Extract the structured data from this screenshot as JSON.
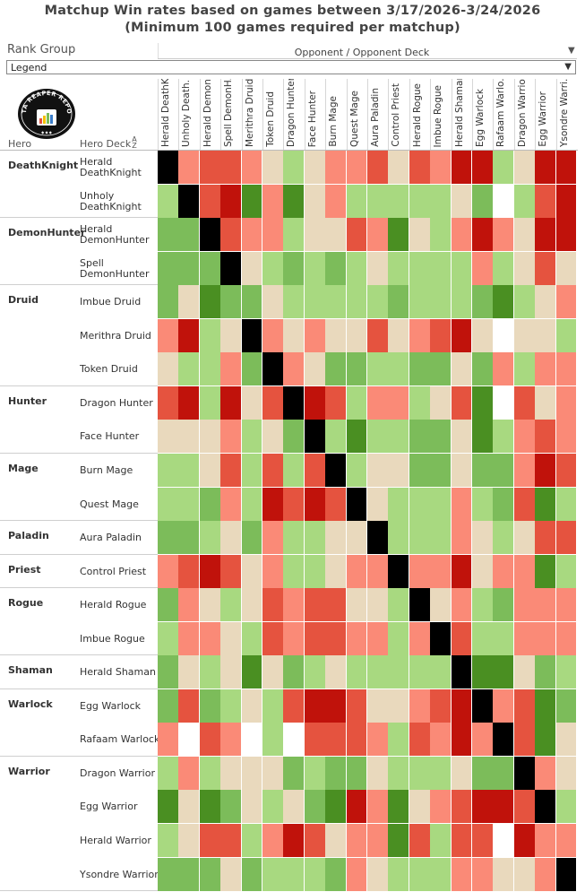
{
  "header": {
    "title_line1": "Matchup Win rates based on games between 3/17/2026-3/24/2026",
    "title_line2": "(Minimum 100 games required per matchup)"
  },
  "filters": {
    "rank_group_label": "Rank Group",
    "rank_group_value": "Legend",
    "opponent_label": "Opponent / Opponent Deck"
  },
  "logo": {
    "text_top": "DATA REAPER REPORT"
  },
  "table": {
    "hero_header": "Hero",
    "deck_header": "Hero Deck"
  },
  "columns": [
    "Herald DeathK..",
    "Unholy Death..",
    "Herald Demon..",
    "Spell DemonH..",
    "Merithra Druid",
    "Token Druid",
    "Dragon Hunter",
    "Face Hunter",
    "Burn Mage",
    "Quest Mage",
    "Aura Paladin",
    "Control Priest",
    "Herald Rogue",
    "Imbue Rogue",
    "Herald Shaman",
    "Egg Warlock",
    "Rafaam Warlo..",
    "Dragon Warrior",
    "Egg Warrior",
    "Ysondre Warri.."
  ],
  "groups": [
    {
      "hero": "DeathKnight",
      "decks": [
        {
          "l1": "Herald",
          "l2": "DeathKnight"
        },
        {
          "l1": "Unholy",
          "l2": "DeathKnight"
        }
      ]
    },
    {
      "hero": "DemonHunter",
      "decks": [
        {
          "l1": "Herald",
          "l2": "DemonHunter"
        },
        {
          "l1": "Spell",
          "l2": "DemonHunter"
        }
      ]
    },
    {
      "hero": "Druid",
      "decks": [
        {
          "l1": "Imbue Druid",
          "l2": ""
        },
        {
          "l1": "Merithra Druid",
          "l2": ""
        },
        {
          "l1": "Token Druid",
          "l2": ""
        }
      ]
    },
    {
      "hero": "Hunter",
      "decks": [
        {
          "l1": "Dragon Hunter",
          "l2": ""
        },
        {
          "l1": "Face Hunter",
          "l2": ""
        }
      ]
    },
    {
      "hero": "Mage",
      "decks": [
        {
          "l1": "Burn Mage",
          "l2": ""
        },
        {
          "l1": "Quest Mage",
          "l2": ""
        }
      ]
    },
    {
      "hero": "Paladin",
      "decks": [
        {
          "l1": "Aura Paladin",
          "l2": ""
        }
      ]
    },
    {
      "hero": "Priest",
      "decks": [
        {
          "l1": "Control Priest",
          "l2": ""
        }
      ]
    },
    {
      "hero": "Rogue",
      "decks": [
        {
          "l1": "Herald Rogue",
          "l2": ""
        },
        {
          "l1": "Imbue Rogue",
          "l2": ""
        }
      ]
    },
    {
      "hero": "Shaman",
      "decks": [
        {
          "l1": "Herald Shaman",
          "l2": ""
        }
      ]
    },
    {
      "hero": "Warlock",
      "decks": [
        {
          "l1": "Egg Warlock",
          "l2": ""
        },
        {
          "l1": "Rafaam Warlock",
          "l2": ""
        }
      ]
    },
    {
      "hero": "Warrior",
      "decks": [
        {
          "l1": "Dragon Warrior",
          "l2": ""
        },
        {
          "l1": "Egg Warrior",
          "l2": ""
        },
        {
          "l1": "Herald Warrior",
          "l2": ""
        },
        {
          "l1": "Ysondre Warrior",
          "l2": ""
        }
      ]
    }
  ],
  "chart_data": {
    "type": "heatmap",
    "title": "Matchup Win rates based on games between 3/17/2026-3/24/2026",
    "subtitle": "(Minimum 100 games required per matchup)",
    "xlabel": "Opponent / Opponent Deck",
    "ylabel": "Hero Deck",
    "rows": [
      "Herald DeathKnight",
      "Unholy DeathKnight",
      "Herald DemonHunter",
      "Spell DemonHunter",
      "Imbue Druid",
      "Merithra Druid",
      "Token Druid",
      "Dragon Hunter",
      "Face Hunter",
      "Burn Mage",
      "Quest Mage",
      "Aura Paladin",
      "Control Priest",
      "Herald Rogue",
      "Imbue Rogue",
      "Herald Shaman",
      "Egg Warlock",
      "Rafaam Warlock",
      "Dragon Warrior",
      "Egg Warrior",
      "Herald Warrior",
      "Ysondre Warrior"
    ],
    "columns": [
      "Herald DeathK..",
      "Unholy Death..",
      "Herald Demon..",
      "Spell DemonH..",
      "Merithra Druid",
      "Token Druid",
      "Dragon Hunter",
      "Face Hunter",
      "Burn Mage",
      "Quest Mage",
      "Aura Paladin",
      "Control Priest",
      "Herald Rogue",
      "Imbue Rogue",
      "Herald Shaman",
      "Egg Warlock",
      "Rafaam Warlo..",
      "Dragon Warrior",
      "Egg Warrior",
      "Ysondre Warri.."
    ],
    "value_scale": "color class: -3 strong unfavored (dark red) .. 0 even (tan) .. 3 strong favored (dark green); M = mirror (black); X = no data (white)",
    "matrix": [
      [
        "M",
        -1,
        -2,
        -2,
        -1,
        0,
        1,
        0,
        -1,
        -1,
        -2,
        0,
        -2,
        -1,
        -3,
        -3,
        1,
        0,
        -3,
        -3
      ],
      [
        1,
        "M",
        -2,
        -3,
        3,
        -1,
        3,
        0,
        -1,
        1,
        1,
        1,
        1,
        1,
        0,
        2,
        "X",
        1,
        -2,
        -3
      ],
      [
        2,
        2,
        "M",
        -2,
        -1,
        -1,
        1,
        0,
        0,
        -2,
        -1,
        3,
        0,
        1,
        -1,
        -3,
        -1,
        0,
        -3,
        -3
      ],
      [
        2,
        2,
        2,
        "M",
        0,
        1,
        2,
        1,
        2,
        1,
        0,
        1,
        1,
        1,
        1,
        -1,
        1,
        0,
        -2,
        0
      ],
      [
        2,
        0,
        3,
        2,
        2,
        0,
        1,
        1,
        1,
        1,
        1,
        2,
        1,
        1,
        1,
        2,
        3,
        1,
        0,
        -1
      ],
      [
        -1,
        -3,
        1,
        0,
        "M",
        -1,
        0,
        -1,
        0,
        0,
        -2,
        0,
        -1,
        -2,
        -3,
        0,
        "X",
        0,
        0,
        1
      ],
      [
        0,
        1,
        1,
        -1,
        2,
        "M",
        -1,
        0,
        2,
        2,
        1,
        1,
        2,
        2,
        0,
        2,
        -1,
        1,
        -1,
        -1
      ],
      [
        -2,
        -3,
        1,
        -3,
        0,
        -2,
        "M",
        -3,
        -2,
        1,
        -1,
        -1,
        1,
        0,
        -2,
        3,
        "X",
        -2,
        0,
        -1
      ],
      [
        0,
        0,
        0,
        -1,
        1,
        0,
        2,
        "M",
        1,
        3,
        1,
        1,
        2,
        2,
        0,
        3,
        1,
        -1,
        -2,
        -1
      ],
      [
        1,
        1,
        0,
        -2,
        1,
        -2,
        1,
        -2,
        "M",
        1,
        0,
        0,
        2,
        2,
        0,
        2,
        2,
        -1,
        -3,
        -2
      ],
      [
        1,
        1,
        2,
        -1,
        1,
        -3,
        -2,
        -3,
        -2,
        "M",
        0,
        1,
        1,
        1,
        -1,
        1,
        2,
        -2,
        3,
        1
      ],
      [
        2,
        2,
        1,
        0,
        2,
        -1,
        1,
        1,
        0,
        0,
        "M",
        1,
        1,
        1,
        -1,
        0,
        1,
        0,
        -2,
        -2
      ],
      [
        -1,
        -2,
        -3,
        -2,
        0,
        -1,
        1,
        1,
        0,
        -1,
        -1,
        "M",
        -1,
        -1,
        -3,
        0,
        -1,
        -1,
        3,
        1
      ],
      [
        2,
        -1,
        0,
        1,
        0,
        -2,
        -1,
        -2,
        -2,
        0,
        0,
        1,
        "M",
        0,
        -1,
        1,
        2,
        -1,
        -1,
        -1
      ],
      [
        1,
        -1,
        -1,
        0,
        1,
        -2,
        -1,
        -2,
        -2,
        -1,
        -1,
        1,
        -1,
        "M",
        -2,
        1,
        1,
        -1,
        -1,
        -1
      ],
      [
        2,
        0,
        1,
        0,
        3,
        0,
        2,
        1,
        0,
        1,
        1,
        1,
        1,
        1,
        "M",
        3,
        3,
        0,
        2,
        1
      ],
      [
        2,
        -2,
        2,
        1,
        0,
        1,
        -2,
        -3,
        -3,
        -2,
        0,
        0,
        -1,
        -2,
        -3,
        "M",
        -1,
        -2,
        3,
        2
      ],
      [
        -1,
        "X",
        -2,
        -1,
        "X",
        1,
        "X",
        -2,
        -2,
        -2,
        -1,
        1,
        -2,
        -1,
        -3,
        -1,
        "M",
        -2,
        3,
        0
      ],
      [
        1,
        -1,
        1,
        0,
        0,
        0,
        2,
        1,
        2,
        2,
        0,
        1,
        1,
        1,
        0,
        2,
        2,
        "M",
        -1,
        0
      ],
      [
        3,
        0,
        3,
        2,
        0,
        1,
        0,
        2,
        3,
        -3,
        -1,
        3,
        0,
        -1,
        -2,
        -3,
        -3,
        -2,
        "M",
        1
      ],
      [
        1,
        0,
        -2,
        -2,
        1,
        -1,
        -3,
        -2,
        0,
        -1,
        -1,
        3,
        -2,
        1,
        -2,
        -2,
        "X",
        -3,
        -1,
        -1
      ],
      [
        2,
        2,
        2,
        0,
        2,
        1,
        1,
        1,
        2,
        -1,
        0,
        1,
        1,
        1,
        -1,
        -1,
        0,
        0,
        -1,
        "M"
      ]
    ]
  },
  "colors": {
    "mirror": "#000000",
    "no_data": "#ffffff",
    "scale": {
      "-3": "#c0120b",
      "-2": "#e5533f",
      "-1": "#fa8a77",
      "0": "#e9d9bd",
      "1": "#a8d980",
      "2": "#7cbc5a",
      "3": "#4a8f22"
    }
  }
}
